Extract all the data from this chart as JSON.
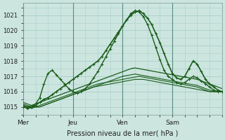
{
  "xlabel": "Pression niveau de la mer( hPa )",
  "xlim": [
    0,
    96
  ],
  "ylim": [
    1014.5,
    1021.8
  ],
  "yticks": [
    1015,
    1016,
    1017,
    1018,
    1019,
    1020,
    1021
  ],
  "xtick_positions": [
    0,
    24,
    48,
    72,
    96
  ],
  "xtick_labels": [
    "Mer",
    "Jeu",
    "Ven",
    "Sam",
    ""
  ],
  "bg_color": "#cce5df",
  "grid_color": "#aacec8",
  "line_color": "#1a5c1a",
  "marker": "+",
  "series": [
    {
      "x": [
        0,
        2,
        4,
        6,
        8,
        10,
        12,
        14,
        16,
        18,
        20,
        22,
        24,
        26,
        28,
        30,
        32,
        34,
        36,
        38,
        40,
        42,
        44,
        46,
        48,
        50,
        52,
        54,
        56,
        58,
        60,
        62,
        64,
        66,
        68,
        70,
        72,
        74,
        76,
        78,
        80,
        82,
        84,
        86,
        88,
        90,
        92,
        94,
        96
      ],
      "y": [
        1015.1,
        1015.0,
        1014.9,
        1015.0,
        1015.0,
        1015.1,
        1015.2,
        1015.3,
        1015.4,
        1015.5,
        1015.6,
        1015.7,
        1015.8,
        1015.9,
        1016.0,
        1016.1,
        1016.2,
        1016.3,
        1016.35,
        1016.4,
        1016.45,
        1016.5,
        1016.55,
        1016.6,
        1016.65,
        1016.7,
        1016.75,
        1016.8,
        1016.8,
        1016.8,
        1016.75,
        1016.7,
        1016.65,
        1016.6,
        1016.55,
        1016.5,
        1016.45,
        1016.4,
        1016.35,
        1016.3,
        1016.25,
        1016.2,
        1016.15,
        1016.1,
        1016.05,
        1016.0,
        1016.0,
        1016.0,
        1016.0
      ],
      "lw": 0.8,
      "marker": false
    },
    {
      "x": [
        0,
        2,
        4,
        6,
        8,
        10,
        12,
        14,
        16,
        18,
        20,
        22,
        24,
        26,
        28,
        30,
        32,
        34,
        36,
        38,
        40,
        42,
        44,
        46,
        48,
        50,
        52,
        54,
        56,
        58,
        60,
        62,
        64,
        66,
        68,
        70,
        72,
        74,
        76,
        78,
        80,
        82,
        84,
        86,
        88,
        90,
        92,
        94,
        96
      ],
      "y": [
        1015.2,
        1015.1,
        1015.0,
        1015.0,
        1015.1,
        1015.2,
        1015.3,
        1015.4,
        1015.5,
        1015.6,
        1015.7,
        1015.8,
        1015.9,
        1016.0,
        1016.1,
        1016.2,
        1016.3,
        1016.4,
        1016.5,
        1016.55,
        1016.6,
        1016.65,
        1016.7,
        1016.75,
        1016.8,
        1016.85,
        1016.9,
        1016.95,
        1017.0,
        1016.95,
        1016.9,
        1016.85,
        1016.8,
        1016.75,
        1016.7,
        1016.65,
        1016.6,
        1016.55,
        1016.5,
        1016.45,
        1016.4,
        1016.35,
        1016.3,
        1016.2,
        1016.1,
        1016.0,
        1016.0,
        1016.0,
        1016.0
      ],
      "lw": 0.8,
      "marker": false
    },
    {
      "x": [
        0,
        2,
        4,
        6,
        8,
        10,
        12,
        14,
        16,
        18,
        20,
        22,
        24,
        26,
        28,
        30,
        32,
        34,
        36,
        38,
        40,
        42,
        44,
        46,
        48,
        50,
        52,
        54,
        56,
        58,
        60,
        62,
        64,
        66,
        68,
        70,
        72,
        74,
        76,
        78,
        80,
        82,
        84,
        86,
        88,
        90,
        92,
        94,
        96
      ],
      "y": [
        1015.3,
        1015.2,
        1015.1,
        1015.0,
        1015.0,
        1015.1,
        1015.2,
        1015.3,
        1015.4,
        1015.5,
        1015.6,
        1015.7,
        1015.8,
        1015.9,
        1016.0,
        1016.1,
        1016.2,
        1016.3,
        1016.4,
        1016.5,
        1016.6,
        1016.7,
        1016.8,
        1016.9,
        1017.0,
        1017.05,
        1017.1,
        1017.15,
        1017.1,
        1017.05,
        1017.0,
        1016.95,
        1016.9,
        1016.85,
        1016.8,
        1016.75,
        1016.7,
        1016.65,
        1016.6,
        1016.55,
        1016.5,
        1016.45,
        1016.4,
        1016.3,
        1016.2,
        1016.1,
        1016.05,
        1016.0,
        1016.0
      ],
      "lw": 0.8,
      "marker": false
    },
    {
      "x": [
        0,
        2,
        4,
        6,
        8,
        10,
        12,
        14,
        16,
        18,
        20,
        22,
        24,
        26,
        28,
        30,
        32,
        34,
        36,
        38,
        40,
        42,
        44,
        46,
        48,
        50,
        52,
        54,
        56,
        58,
        60,
        62,
        64,
        66,
        68,
        70,
        72,
        74,
        76,
        78,
        80,
        82,
        84,
        86,
        88,
        90,
        92,
        94,
        96
      ],
      "y": [
        1015.0,
        1015.0,
        1015.1,
        1015.2,
        1015.3,
        1015.4,
        1015.5,
        1015.6,
        1015.7,
        1015.8,
        1015.9,
        1016.0,
        1016.1,
        1016.2,
        1016.3,
        1016.4,
        1016.5,
        1016.6,
        1016.7,
        1016.8,
        1016.9,
        1017.0,
        1017.1,
        1017.2,
        1017.3,
        1017.4,
        1017.5,
        1017.55,
        1017.5,
        1017.45,
        1017.4,
        1017.35,
        1017.3,
        1017.25,
        1017.2,
        1017.15,
        1017.1,
        1017.05,
        1017.0,
        1016.95,
        1016.9,
        1016.85,
        1016.8,
        1016.7,
        1016.6,
        1016.5,
        1016.4,
        1016.3,
        1016.2
      ],
      "lw": 0.9,
      "marker": false
    },
    {
      "x": [
        0,
        2,
        4,
        6,
        8,
        10,
        12,
        14,
        16,
        18,
        20,
        22,
        24,
        26,
        28,
        30,
        32,
        34,
        36,
        38,
        40,
        42,
        44,
        46,
        48,
        50,
        52,
        54,
        56,
        58,
        60,
        62,
        64,
        66,
        68,
        70,
        72,
        74,
        76,
        78,
        80,
        82,
        84,
        86,
        88,
        90,
        92,
        94,
        96
      ],
      "y": [
        1015.1,
        1015.0,
        1015.0,
        1015.1,
        1015.3,
        1015.5,
        1015.6,
        1015.8,
        1016.0,
        1016.2,
        1016.4,
        1016.6,
        1016.8,
        1017.0,
        1017.2,
        1017.4,
        1017.6,
        1017.8,
        1018.0,
        1018.3,
        1018.7,
        1019.1,
        1019.5,
        1019.9,
        1020.3,
        1020.7,
        1021.0,
        1021.2,
        1021.3,
        1021.1,
        1020.8,
        1020.4,
        1019.8,
        1019.2,
        1018.5,
        1017.8,
        1017.2,
        1016.9,
        1016.8,
        1017.0,
        1017.5,
        1018.0,
        1017.8,
        1017.3,
        1016.8,
        1016.5,
        1016.3,
        1016.1,
        1016.0
      ],
      "lw": 1.2,
      "marker": true
    },
    {
      "x": [
        0,
        2,
        4,
        6,
        8,
        10,
        12,
        14,
        16,
        18,
        20,
        22,
        24,
        26,
        28,
        30,
        32,
        34,
        36,
        38,
        40,
        42,
        44,
        46,
        48,
        50,
        52,
        54,
        56,
        58,
        60,
        62,
        64,
        66,
        68,
        70,
        72,
        74,
        76,
        78,
        80,
        82,
        84,
        86,
        88,
        90,
        92,
        94,
        96
      ],
      "y": [
        1015.0,
        1014.9,
        1015.0,
        1015.2,
        1015.6,
        1016.5,
        1017.2,
        1017.4,
        1017.1,
        1016.8,
        1016.5,
        1016.2,
        1016.0,
        1015.9,
        1016.0,
        1016.2,
        1016.5,
        1016.9,
        1017.3,
        1017.8,
        1018.3,
        1018.8,
        1019.3,
        1019.8,
        1020.3,
        1020.7,
        1021.1,
        1021.3,
        1021.2,
        1020.9,
        1020.4,
        1019.7,
        1018.9,
        1018.1,
        1017.4,
        1017.0,
        1016.8,
        1016.6,
        1016.5,
        1016.6,
        1016.8,
        1017.0,
        1016.9,
        1016.7,
        1016.5,
        1016.3,
        1016.1,
        1016.0,
        1016.0
      ],
      "lw": 1.0,
      "marker": true
    }
  ]
}
